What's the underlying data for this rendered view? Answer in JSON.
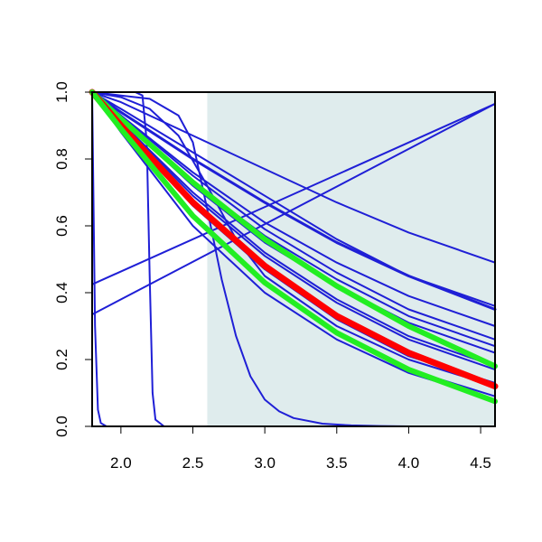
{
  "chart_data": {
    "type": "line",
    "title": "",
    "xlabel": "",
    "ylabel": "",
    "xlim": [
      1.8,
      4.6
    ],
    "ylim": [
      0.0,
      1.0
    ],
    "grid": false,
    "legend": "none",
    "x_ticks": [
      "2.0",
      "2.5",
      "3.0",
      "3.5",
      "4.0",
      "4.5"
    ],
    "y_ticks": [
      "0.0",
      "0.2",
      "0.4",
      "0.6",
      "0.8",
      "1.0"
    ],
    "shaded_region": {
      "x_start": 2.6,
      "x_end": 4.6,
      "color": "#dfeced"
    },
    "colors": {
      "blue": "#1f1fd6",
      "red": "#ff0000",
      "green": "#22ee22"
    },
    "series": [
      {
        "color": "blue",
        "width": 2,
        "x": [
          1.8,
          1.82,
          1.84,
          1.86,
          1.9,
          2.0
        ],
        "y": [
          1.0,
          0.3,
          0.05,
          0.01,
          0.0,
          0.0
        ]
      },
      {
        "color": "blue",
        "width": 2,
        "x": [
          1.8,
          2.1,
          2.15,
          2.18,
          2.2,
          2.22,
          2.24,
          2.3,
          4.6
        ],
        "y": [
          1.0,
          1.0,
          0.99,
          0.85,
          0.45,
          0.1,
          0.02,
          0.0,
          0.0
        ]
      },
      {
        "color": "blue",
        "width": 2,
        "x": [
          1.8,
          2.0,
          2.2,
          2.4,
          2.5,
          2.6,
          2.7,
          2.8,
          2.9,
          3.0,
          3.1,
          3.2,
          3.4,
          3.6,
          3.8,
          4.0,
          4.6
        ],
        "y": [
          1.0,
          0.99,
          0.98,
          0.93,
          0.85,
          0.65,
          0.44,
          0.27,
          0.15,
          0.08,
          0.045,
          0.025,
          0.008,
          0.003,
          0.001,
          0.0,
          0.0
        ]
      },
      {
        "color": "blue",
        "width": 2,
        "x": [
          1.8,
          4.6
        ],
        "y": [
          0.425,
          0.965
        ]
      },
      {
        "color": "blue",
        "width": 2,
        "x": [
          1.8,
          4.6
        ],
        "y": [
          0.335,
          0.965
        ]
      },
      {
        "color": "blue",
        "width": 2,
        "x": [
          1.8,
          2.0,
          2.5,
          3.0,
          3.5,
          4.0,
          4.6
        ],
        "y": [
          1.0,
          0.97,
          0.87,
          0.77,
          0.67,
          0.58,
          0.49
        ]
      },
      {
        "color": "blue",
        "width": 2,
        "x": [
          1.8,
          2.0,
          2.5,
          3.0,
          3.5,
          4.0,
          4.6
        ],
        "y": [
          1.0,
          0.95,
          0.82,
          0.69,
          0.56,
          0.45,
          0.36
        ]
      },
      {
        "color": "blue",
        "width": 3,
        "x": [
          1.8,
          2.0,
          2.5,
          3.0,
          3.5,
          4.0,
          4.6
        ],
        "y": [
          1.0,
          0.94,
          0.8,
          0.67,
          0.55,
          0.45,
          0.35
        ]
      },
      {
        "color": "blue",
        "width": 2,
        "x": [
          1.8,
          2.0,
          2.5,
          3.0,
          3.5,
          4.0,
          4.6
        ],
        "y": [
          1.0,
          0.93,
          0.76,
          0.61,
          0.49,
          0.39,
          0.3
        ]
      },
      {
        "color": "blue",
        "width": 2,
        "x": [
          1.8,
          2.0,
          2.5,
          3.0,
          3.5,
          4.0,
          4.6
        ],
        "y": [
          1.0,
          0.93,
          0.75,
          0.59,
          0.46,
          0.35,
          0.26
        ]
      },
      {
        "color": "blue",
        "width": 2,
        "x": [
          1.8,
          2.0,
          2.5,
          3.0,
          3.5,
          4.0,
          4.6
        ],
        "y": [
          1.0,
          0.92,
          0.73,
          0.57,
          0.44,
          0.33,
          0.24
        ]
      },
      {
        "color": "blue",
        "width": 2,
        "x": [
          1.8,
          2.0,
          2.5,
          3.0,
          3.5,
          4.0,
          4.6
        ],
        "y": [
          1.0,
          0.92,
          0.72,
          0.55,
          0.42,
          0.31,
          0.22
        ]
      },
      {
        "color": "blue",
        "width": 2,
        "x": [
          1.8,
          2.0,
          2.5,
          3.0,
          3.5,
          4.0,
          4.6
        ],
        "y": [
          1.0,
          0.91,
          0.7,
          0.52,
          0.38,
          0.27,
          0.18
        ]
      },
      {
        "color": "blue",
        "width": 2,
        "x": [
          1.8,
          2.0,
          2.5,
          3.0,
          3.5,
          4.0,
          4.6
        ],
        "y": [
          1.0,
          0.91,
          0.69,
          0.51,
          0.37,
          0.26,
          0.17
        ]
      },
      {
        "color": "blue",
        "width": 2,
        "x": [
          1.8,
          2.0,
          2.5,
          3.0,
          3.5,
          4.0,
          4.6
        ],
        "y": [
          1.0,
          0.9,
          0.66,
          0.47,
          0.32,
          0.21,
          0.13
        ]
      },
      {
        "color": "blue",
        "width": 2,
        "x": [
          1.8,
          2.0,
          2.5,
          3.0,
          3.5,
          4.0,
          4.6
        ],
        "y": [
          1.0,
          0.89,
          0.63,
          0.43,
          0.28,
          0.17,
          0.09
        ]
      },
      {
        "color": "blue",
        "width": 2,
        "x": [
          1.8,
          2.0,
          2.5,
          3.0,
          3.5,
          4.0,
          4.6
        ],
        "y": [
          1.0,
          0.88,
          0.6,
          0.4,
          0.26,
          0.16,
          0.08
        ]
      },
      {
        "color": "blue",
        "width": 2,
        "x": [
          1.8,
          2.0,
          2.2,
          2.4,
          2.6,
          2.8,
          3.0,
          3.5,
          4.0,
          4.6
        ],
        "y": [
          1.0,
          0.985,
          0.95,
          0.87,
          0.72,
          0.56,
          0.45,
          0.3,
          0.2,
          0.12
        ]
      },
      {
        "color": "green",
        "width": 6,
        "x": [
          1.8,
          2.0,
          2.5,
          3.0,
          3.5,
          4.0,
          4.6
        ],
        "y": [
          1.0,
          0.92,
          0.73,
          0.56,
          0.42,
          0.3,
          0.18
        ]
      },
      {
        "color": "red",
        "width": 7,
        "x": [
          1.8,
          2.0,
          2.5,
          3.0,
          3.5,
          4.0,
          4.6
        ],
        "y": [
          1.0,
          0.9,
          0.67,
          0.48,
          0.33,
          0.22,
          0.12
        ]
      },
      {
        "color": "green",
        "width": 6,
        "x": [
          1.8,
          2.0,
          2.5,
          3.0,
          3.5,
          4.0,
          4.6
        ],
        "y": [
          1.0,
          0.89,
          0.63,
          0.43,
          0.28,
          0.17,
          0.075
        ]
      }
    ]
  }
}
